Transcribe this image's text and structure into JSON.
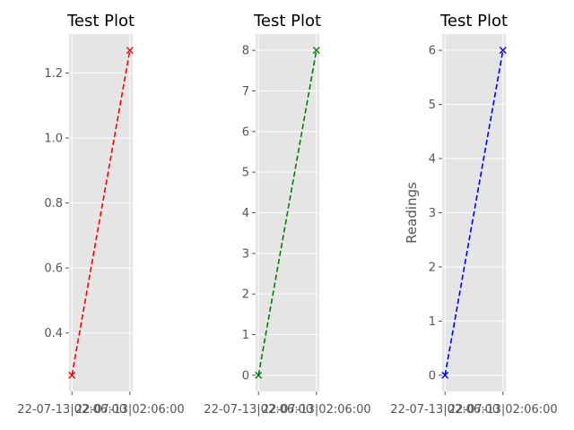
{
  "chart_data": [
    {
      "type": "line",
      "title": "Test Plot",
      "xlabel": "",
      "ylabel": "",
      "x_tick_labels": [
        "22-07-13|02:06:00",
        "22-07-13|02:06:00"
      ],
      "series": [
        {
          "color": "#ff0000",
          "linestyle": "dashed",
          "marker": "x",
          "values": [
            0.27,
            1.27
          ]
        }
      ],
      "yticks": [
        0.4,
        0.6,
        0.8,
        1.0,
        1.2
      ],
      "ylim": [
        0.22,
        1.32
      ],
      "grid": true,
      "background": "#e5e5e5"
    },
    {
      "type": "line",
      "title": "Test Plot",
      "xlabel": "",
      "ylabel": "",
      "x_tick_labels": [
        "22-07-13|02:06:00",
        "22-07-13|02:06:00"
      ],
      "series": [
        {
          "color": "#008000",
          "linestyle": "dashed",
          "marker": "x",
          "values": [
            0,
            8
          ]
        }
      ],
      "yticks": [
        0,
        1,
        2,
        3,
        4,
        5,
        6,
        7,
        8
      ],
      "ylim": [
        -0.4,
        8.4
      ],
      "grid": true,
      "background": "#e5e5e5"
    },
    {
      "type": "line",
      "title": "Test Plot",
      "xlabel": "",
      "ylabel": "Readings",
      "x_tick_labels": [
        "22-07-13|02:06:00",
        "22-07-13|02:06:00"
      ],
      "series": [
        {
          "color": "#0000ff",
          "linestyle": "dashed",
          "marker": "x",
          "values": [
            0,
            6
          ]
        }
      ],
      "yticks": [
        0,
        1,
        2,
        3,
        4,
        5,
        6
      ],
      "ylim": [
        -0.3,
        6.3
      ],
      "grid": true,
      "background": "#e5e5e5"
    }
  ]
}
